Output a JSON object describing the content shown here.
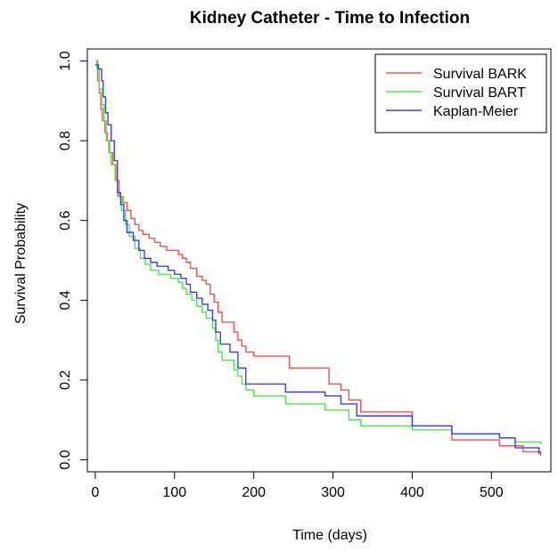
{
  "chart_data": {
    "type": "line",
    "title": "Kidney Catheter - Time to Infection",
    "xlabel": "Time (days)",
    "ylabel": "Survival Probability",
    "xlim": [
      -10,
      575
    ],
    "ylim": [
      -0.03,
      1.03
    ],
    "xticks": [
      0,
      100,
      200,
      300,
      400,
      500
    ],
    "yticks": [
      0.0,
      0.2,
      0.4,
      0.6,
      0.8,
      1.0
    ],
    "xtick_labels": [
      "0",
      "100",
      "200",
      "300",
      "400",
      "500"
    ],
    "ytick_labels": [
      "0.0",
      "0.2",
      "0.4",
      "0.6",
      "0.8",
      "1.0"
    ],
    "legend_position": "top-right",
    "series": [
      {
        "name": "Survival BARK",
        "color": "#ff4d4d",
        "points": [
          [
            0,
            1.0
          ],
          [
            3,
            0.95
          ],
          [
            5,
            0.92
          ],
          [
            7,
            0.88
          ],
          [
            9,
            0.85
          ],
          [
            12,
            0.82
          ],
          [
            15,
            0.8
          ],
          [
            18,
            0.77
          ],
          [
            22,
            0.74
          ],
          [
            26,
            0.7
          ],
          [
            30,
            0.66
          ],
          [
            35,
            0.645
          ],
          [
            40,
            0.625
          ],
          [
            45,
            0.605
          ],
          [
            50,
            0.59
          ],
          [
            55,
            0.575
          ],
          [
            60,
            0.565
          ],
          [
            68,
            0.555
          ],
          [
            75,
            0.545
          ],
          [
            82,
            0.535
          ],
          [
            90,
            0.525
          ],
          [
            105,
            0.515
          ],
          [
            110,
            0.505
          ],
          [
            115,
            0.495
          ],
          [
            120,
            0.48
          ],
          [
            128,
            0.46
          ],
          [
            135,
            0.45
          ],
          [
            140,
            0.44
          ],
          [
            145,
            0.415
          ],
          [
            150,
            0.395
          ],
          [
            155,
            0.37
          ],
          [
            160,
            0.345
          ],
          [
            175,
            0.32
          ],
          [
            180,
            0.3
          ],
          [
            185,
            0.285
          ],
          [
            190,
            0.27
          ],
          [
            200,
            0.26
          ],
          [
            245,
            0.23
          ],
          [
            295,
            0.19
          ],
          [
            310,
            0.175
          ],
          [
            320,
            0.15
          ],
          [
            335,
            0.12
          ],
          [
            400,
            0.085
          ],
          [
            450,
            0.05
          ],
          [
            510,
            0.035
          ],
          [
            540,
            0.02
          ],
          [
            562,
            0.01
          ]
        ]
      },
      {
        "name": "Survival BART",
        "color": "#44ee44",
        "points": [
          [
            0,
            1.0
          ],
          [
            2,
            0.98
          ],
          [
            5,
            0.93
          ],
          [
            8,
            0.89
          ],
          [
            11,
            0.85
          ],
          [
            14,
            0.8
          ],
          [
            17,
            0.77
          ],
          [
            20,
            0.74
          ],
          [
            25,
            0.7
          ],
          [
            28,
            0.66
          ],
          [
            33,
            0.625
          ],
          [
            38,
            0.59
          ],
          [
            43,
            0.56
          ],
          [
            50,
            0.53
          ],
          [
            57,
            0.505
          ],
          [
            63,
            0.49
          ],
          [
            70,
            0.475
          ],
          [
            80,
            0.465
          ],
          [
            95,
            0.455
          ],
          [
            105,
            0.445
          ],
          [
            110,
            0.43
          ],
          [
            115,
            0.415
          ],
          [
            122,
            0.4
          ],
          [
            128,
            0.385
          ],
          [
            135,
            0.37
          ],
          [
            140,
            0.355
          ],
          [
            148,
            0.33
          ],
          [
            152,
            0.3
          ],
          [
            155,
            0.27
          ],
          [
            160,
            0.25
          ],
          [
            175,
            0.225
          ],
          [
            180,
            0.21
          ],
          [
            185,
            0.19
          ],
          [
            190,
            0.175
          ],
          [
            200,
            0.16
          ],
          [
            240,
            0.14
          ],
          [
            290,
            0.125
          ],
          [
            320,
            0.1
          ],
          [
            335,
            0.085
          ],
          [
            400,
            0.075
          ],
          [
            450,
            0.065
          ],
          [
            510,
            0.055
          ],
          [
            530,
            0.045
          ],
          [
            562,
            0.04
          ]
        ]
      },
      {
        "name": "Kaplan-Meier",
        "color": "#3b3bff",
        "points": [
          [
            0,
            0.99
          ],
          [
            4,
            0.98
          ],
          [
            8,
            0.95
          ],
          [
            10,
            0.91
          ],
          [
            13,
            0.87
          ],
          [
            16,
            0.84
          ],
          [
            20,
            0.8
          ],
          [
            24,
            0.75
          ],
          [
            28,
            0.67
          ],
          [
            32,
            0.64
          ],
          [
            36,
            0.6
          ],
          [
            40,
            0.57
          ],
          [
            48,
            0.55
          ],
          [
            55,
            0.525
          ],
          [
            62,
            0.505
          ],
          [
            70,
            0.495
          ],
          [
            78,
            0.485
          ],
          [
            92,
            0.475
          ],
          [
            100,
            0.465
          ],
          [
            108,
            0.455
          ],
          [
            115,
            0.44
          ],
          [
            120,
            0.42
          ],
          [
            128,
            0.405
          ],
          [
            135,
            0.39
          ],
          [
            142,
            0.375
          ],
          [
            148,
            0.35
          ],
          [
            152,
            0.32
          ],
          [
            158,
            0.29
          ],
          [
            170,
            0.27
          ],
          [
            180,
            0.23
          ],
          [
            190,
            0.19
          ],
          [
            240,
            0.17
          ],
          [
            290,
            0.16
          ],
          [
            310,
            0.14
          ],
          [
            330,
            0.11
          ],
          [
            400,
            0.085
          ],
          [
            450,
            0.065
          ],
          [
            510,
            0.055
          ],
          [
            530,
            0.03
          ],
          [
            560,
            0.015
          ]
        ]
      }
    ]
  }
}
